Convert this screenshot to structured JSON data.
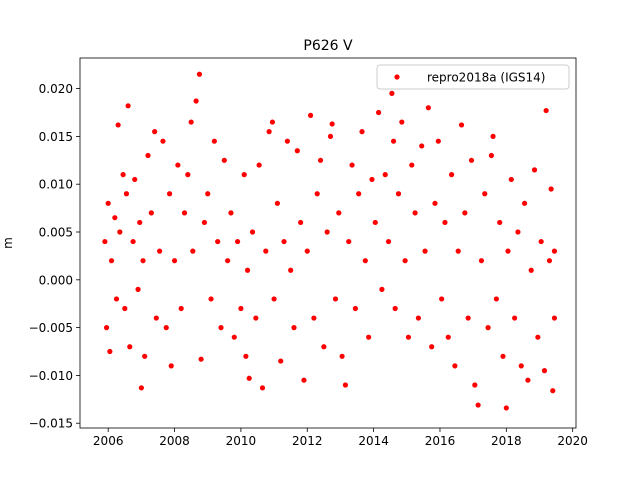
{
  "chart_data": {
    "type": "scatter",
    "title": "P626 V",
    "xlabel": "",
    "ylabel": "m",
    "xlim": [
      2005.15,
      2020.1
    ],
    "ylim": [
      -0.0155,
      0.0232
    ],
    "xticks": [
      2006,
      2008,
      2010,
      2012,
      2014,
      2016,
      2018,
      2020
    ],
    "xtick_labels": [
      "2006",
      "2008",
      "2010",
      "2012",
      "2014",
      "2016",
      "2018",
      "2020"
    ],
    "yticks": [
      -0.015,
      -0.01,
      -0.005,
      0.0,
      0.005,
      0.01,
      0.015,
      0.02
    ],
    "ytick_labels": [
      "−0.015",
      "−0.010",
      "−0.005",
      "0.000",
      "0.005",
      "0.010",
      "0.015",
      "0.020"
    ],
    "grid": false,
    "legend_position": "top-right",
    "series": [
      {
        "name": "repro2018a (IGS14)",
        "color": "#ff0000",
        "marker": "circle",
        "points": [
          [
            2005.9,
            0.004
          ],
          [
            2005.95,
            -0.005
          ],
          [
            2006.0,
            0.008
          ],
          [
            2006.05,
            -0.0075
          ],
          [
            2006.1,
            0.002
          ],
          [
            2006.2,
            0.0065
          ],
          [
            2006.25,
            -0.002
          ],
          [
            2006.3,
            0.0162
          ],
          [
            2006.35,
            0.005
          ],
          [
            2006.45,
            0.011
          ],
          [
            2006.5,
            -0.003
          ],
          [
            2006.55,
            0.009
          ],
          [
            2006.6,
            0.0182
          ],
          [
            2006.65,
            -0.007
          ],
          [
            2006.75,
            0.004
          ],
          [
            2006.8,
            0.0105
          ],
          [
            2006.9,
            -0.001
          ],
          [
            2006.95,
            0.006
          ],
          [
            2007.0,
            -0.0113
          ],
          [
            2007.05,
            0.002
          ],
          [
            2007.1,
            -0.008
          ],
          [
            2007.2,
            0.013
          ],
          [
            2007.3,
            0.007
          ],
          [
            2007.4,
            0.0155
          ],
          [
            2007.45,
            -0.004
          ],
          [
            2007.55,
            0.003
          ],
          [
            2007.65,
            0.0145
          ],
          [
            2007.75,
            -0.005
          ],
          [
            2007.85,
            0.009
          ],
          [
            2007.9,
            -0.009
          ],
          [
            2008.0,
            0.002
          ],
          [
            2008.1,
            0.012
          ],
          [
            2008.2,
            -0.003
          ],
          [
            2008.3,
            0.007
          ],
          [
            2008.4,
            0.011
          ],
          [
            2008.5,
            0.0165
          ],
          [
            2008.55,
            0.003
          ],
          [
            2008.65,
            0.0187
          ],
          [
            2008.75,
            0.0215
          ],
          [
            2008.8,
            -0.0083
          ],
          [
            2008.9,
            0.006
          ],
          [
            2009.0,
            0.009
          ],
          [
            2009.1,
            -0.002
          ],
          [
            2009.2,
            0.0145
          ],
          [
            2009.3,
            0.004
          ],
          [
            2009.4,
            -0.005
          ],
          [
            2009.5,
            0.0125
          ],
          [
            2009.6,
            0.002
          ],
          [
            2009.7,
            0.007
          ],
          [
            2009.8,
            -0.006
          ],
          [
            2009.9,
            0.004
          ],
          [
            2010.0,
            -0.003
          ],
          [
            2010.1,
            0.011
          ],
          [
            2010.15,
            -0.008
          ],
          [
            2010.2,
            0.001
          ],
          [
            2010.25,
            -0.0103
          ],
          [
            2010.35,
            0.005
          ],
          [
            2010.45,
            -0.004
          ],
          [
            2010.55,
            0.012
          ],
          [
            2010.65,
            -0.0113
          ],
          [
            2010.75,
            0.003
          ],
          [
            2010.85,
            0.0155
          ],
          [
            2010.95,
            0.0165
          ],
          [
            2011.0,
            -0.002
          ],
          [
            2011.1,
            0.008
          ],
          [
            2011.2,
            -0.0085
          ],
          [
            2011.3,
            0.004
          ],
          [
            2011.4,
            0.0145
          ],
          [
            2011.5,
            0.001
          ],
          [
            2011.6,
            -0.005
          ],
          [
            2011.7,
            0.0135
          ],
          [
            2011.8,
            0.006
          ],
          [
            2011.9,
            -0.0105
          ],
          [
            2012.0,
            0.003
          ],
          [
            2012.1,
            0.0172
          ],
          [
            2012.2,
            -0.004
          ],
          [
            2012.3,
            0.009
          ],
          [
            2012.4,
            0.0125
          ],
          [
            2012.5,
            -0.007
          ],
          [
            2012.6,
            0.005
          ],
          [
            2012.7,
            0.015
          ],
          [
            2012.75,
            0.0163
          ],
          [
            2012.85,
            -0.002
          ],
          [
            2012.95,
            0.007
          ],
          [
            2013.05,
            -0.008
          ],
          [
            2013.15,
            -0.011
          ],
          [
            2013.25,
            0.004
          ],
          [
            2013.35,
            0.012
          ],
          [
            2013.45,
            -0.003
          ],
          [
            2013.55,
            0.009
          ],
          [
            2013.65,
            0.0155
          ],
          [
            2013.75,
            0.002
          ],
          [
            2013.85,
            -0.006
          ],
          [
            2013.95,
            0.0105
          ],
          [
            2014.05,
            0.006
          ],
          [
            2014.15,
            0.0175
          ],
          [
            2014.25,
            -0.001
          ],
          [
            2014.35,
            0.011
          ],
          [
            2014.45,
            0.004
          ],
          [
            2014.55,
            0.0195
          ],
          [
            2014.6,
            0.0145
          ],
          [
            2014.65,
            -0.003
          ],
          [
            2014.75,
            0.009
          ],
          [
            2014.85,
            0.0165
          ],
          [
            2014.95,
            0.002
          ],
          [
            2015.05,
            -0.006
          ],
          [
            2015.15,
            0.012
          ],
          [
            2015.25,
            0.007
          ],
          [
            2015.35,
            -0.004
          ],
          [
            2015.45,
            0.014
          ],
          [
            2015.55,
            0.003
          ],
          [
            2015.65,
            0.018
          ],
          [
            2015.75,
            -0.007
          ],
          [
            2015.85,
            0.008
          ],
          [
            2015.95,
            0.0145
          ],
          [
            2016.05,
            -0.002
          ],
          [
            2016.15,
            0.006
          ],
          [
            2016.25,
            -0.006
          ],
          [
            2016.35,
            0.011
          ],
          [
            2016.45,
            -0.009
          ],
          [
            2016.55,
            0.003
          ],
          [
            2016.65,
            0.0162
          ],
          [
            2016.75,
            0.007
          ],
          [
            2016.85,
            -0.004
          ],
          [
            2016.95,
            0.0125
          ],
          [
            2017.05,
            -0.011
          ],
          [
            2017.15,
            -0.0131
          ],
          [
            2017.25,
            0.002
          ],
          [
            2017.35,
            0.009
          ],
          [
            2017.45,
            -0.005
          ],
          [
            2017.55,
            0.013
          ],
          [
            2017.6,
            0.015
          ],
          [
            2017.7,
            -0.002
          ],
          [
            2017.8,
            0.006
          ],
          [
            2017.9,
            -0.008
          ],
          [
            2018.0,
            -0.0134
          ],
          [
            2018.05,
            0.003
          ],
          [
            2018.15,
            0.0105
          ],
          [
            2018.25,
            -0.004
          ],
          [
            2018.35,
            0.005
          ],
          [
            2018.45,
            -0.009
          ],
          [
            2018.55,
            0.008
          ],
          [
            2018.65,
            -0.0105
          ],
          [
            2018.75,
            0.001
          ],
          [
            2018.85,
            0.0115
          ],
          [
            2018.95,
            -0.006
          ],
          [
            2019.05,
            0.004
          ],
          [
            2019.15,
            -0.0095
          ],
          [
            2019.2,
            0.0177
          ],
          [
            2019.3,
            0.002
          ],
          [
            2019.35,
            0.0095
          ],
          [
            2019.4,
            -0.0116
          ],
          [
            2019.45,
            0.003
          ],
          [
            2019.45,
            -0.004
          ]
        ]
      }
    ]
  }
}
